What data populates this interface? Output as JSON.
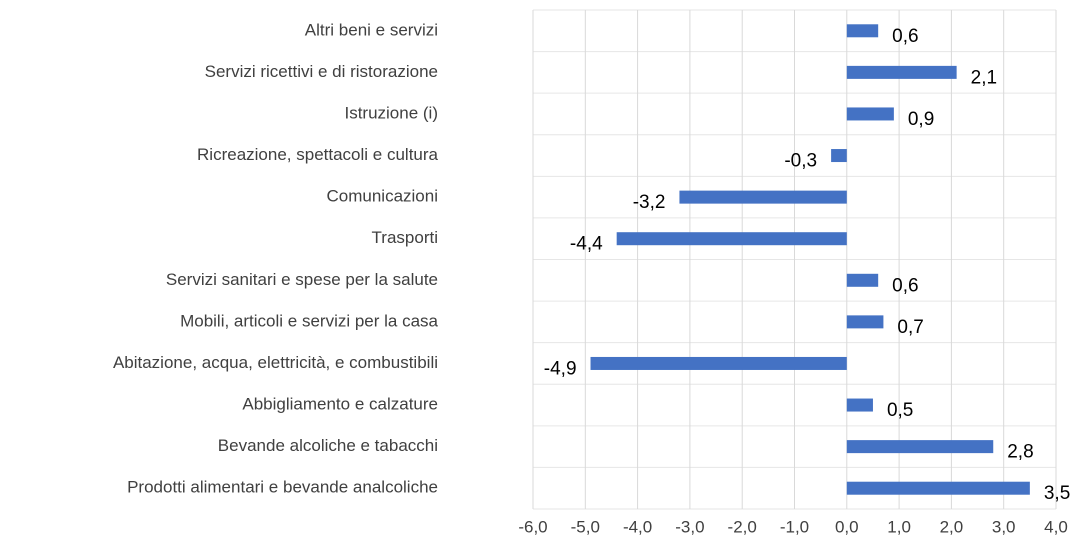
{
  "chart_data": {
    "type": "bar",
    "orientation": "horizontal",
    "categories": [
      "Altri beni e servizi",
      "Servizi ricettivi e di ristorazione",
      "Istruzione (i)",
      "Ricreazione, spettacoli e cultura",
      "Comunicazioni",
      "Trasporti",
      "Servizi sanitari e spese per la salute",
      "Mobili, articoli e servizi per la casa",
      "Abitazione, acqua, elettricità, e combustibili",
      "Abbigliamento e calzature",
      "Bevande alcoliche e tabacchi",
      "Prodotti alimentari e bevande analcoliche"
    ],
    "values": [
      0.6,
      2.1,
      0.9,
      -0.3,
      -3.2,
      -4.4,
      0.6,
      0.7,
      -4.9,
      0.5,
      2.8,
      3.5
    ],
    "value_labels": [
      "0,6",
      "2,1",
      "0,9",
      "-0,3",
      "-3,2",
      "-4,4",
      "0,6",
      "0,7",
      "-4,9",
      "0,5",
      "2,8",
      "3,5"
    ],
    "color": "#4472c4",
    "xlim": [
      -6,
      4
    ],
    "xticks": [
      {
        "value": -6,
        "label": "-6,0"
      },
      {
        "value": -5,
        "label": "-5,0"
      },
      {
        "value": -4,
        "label": "-4,0"
      },
      {
        "value": -3,
        "label": "-3,0"
      },
      {
        "value": -2,
        "label": "-2,0"
      },
      {
        "value": -1,
        "label": "-1,0"
      },
      {
        "value": 0,
        "label": "0,0"
      },
      {
        "value": 1,
        "label": "1,0"
      },
      {
        "value": 2,
        "label": "2,0"
      },
      {
        "value": 3,
        "label": "3,0"
      },
      {
        "value": 4,
        "label": "4,0"
      }
    ],
    "grid": true
  }
}
